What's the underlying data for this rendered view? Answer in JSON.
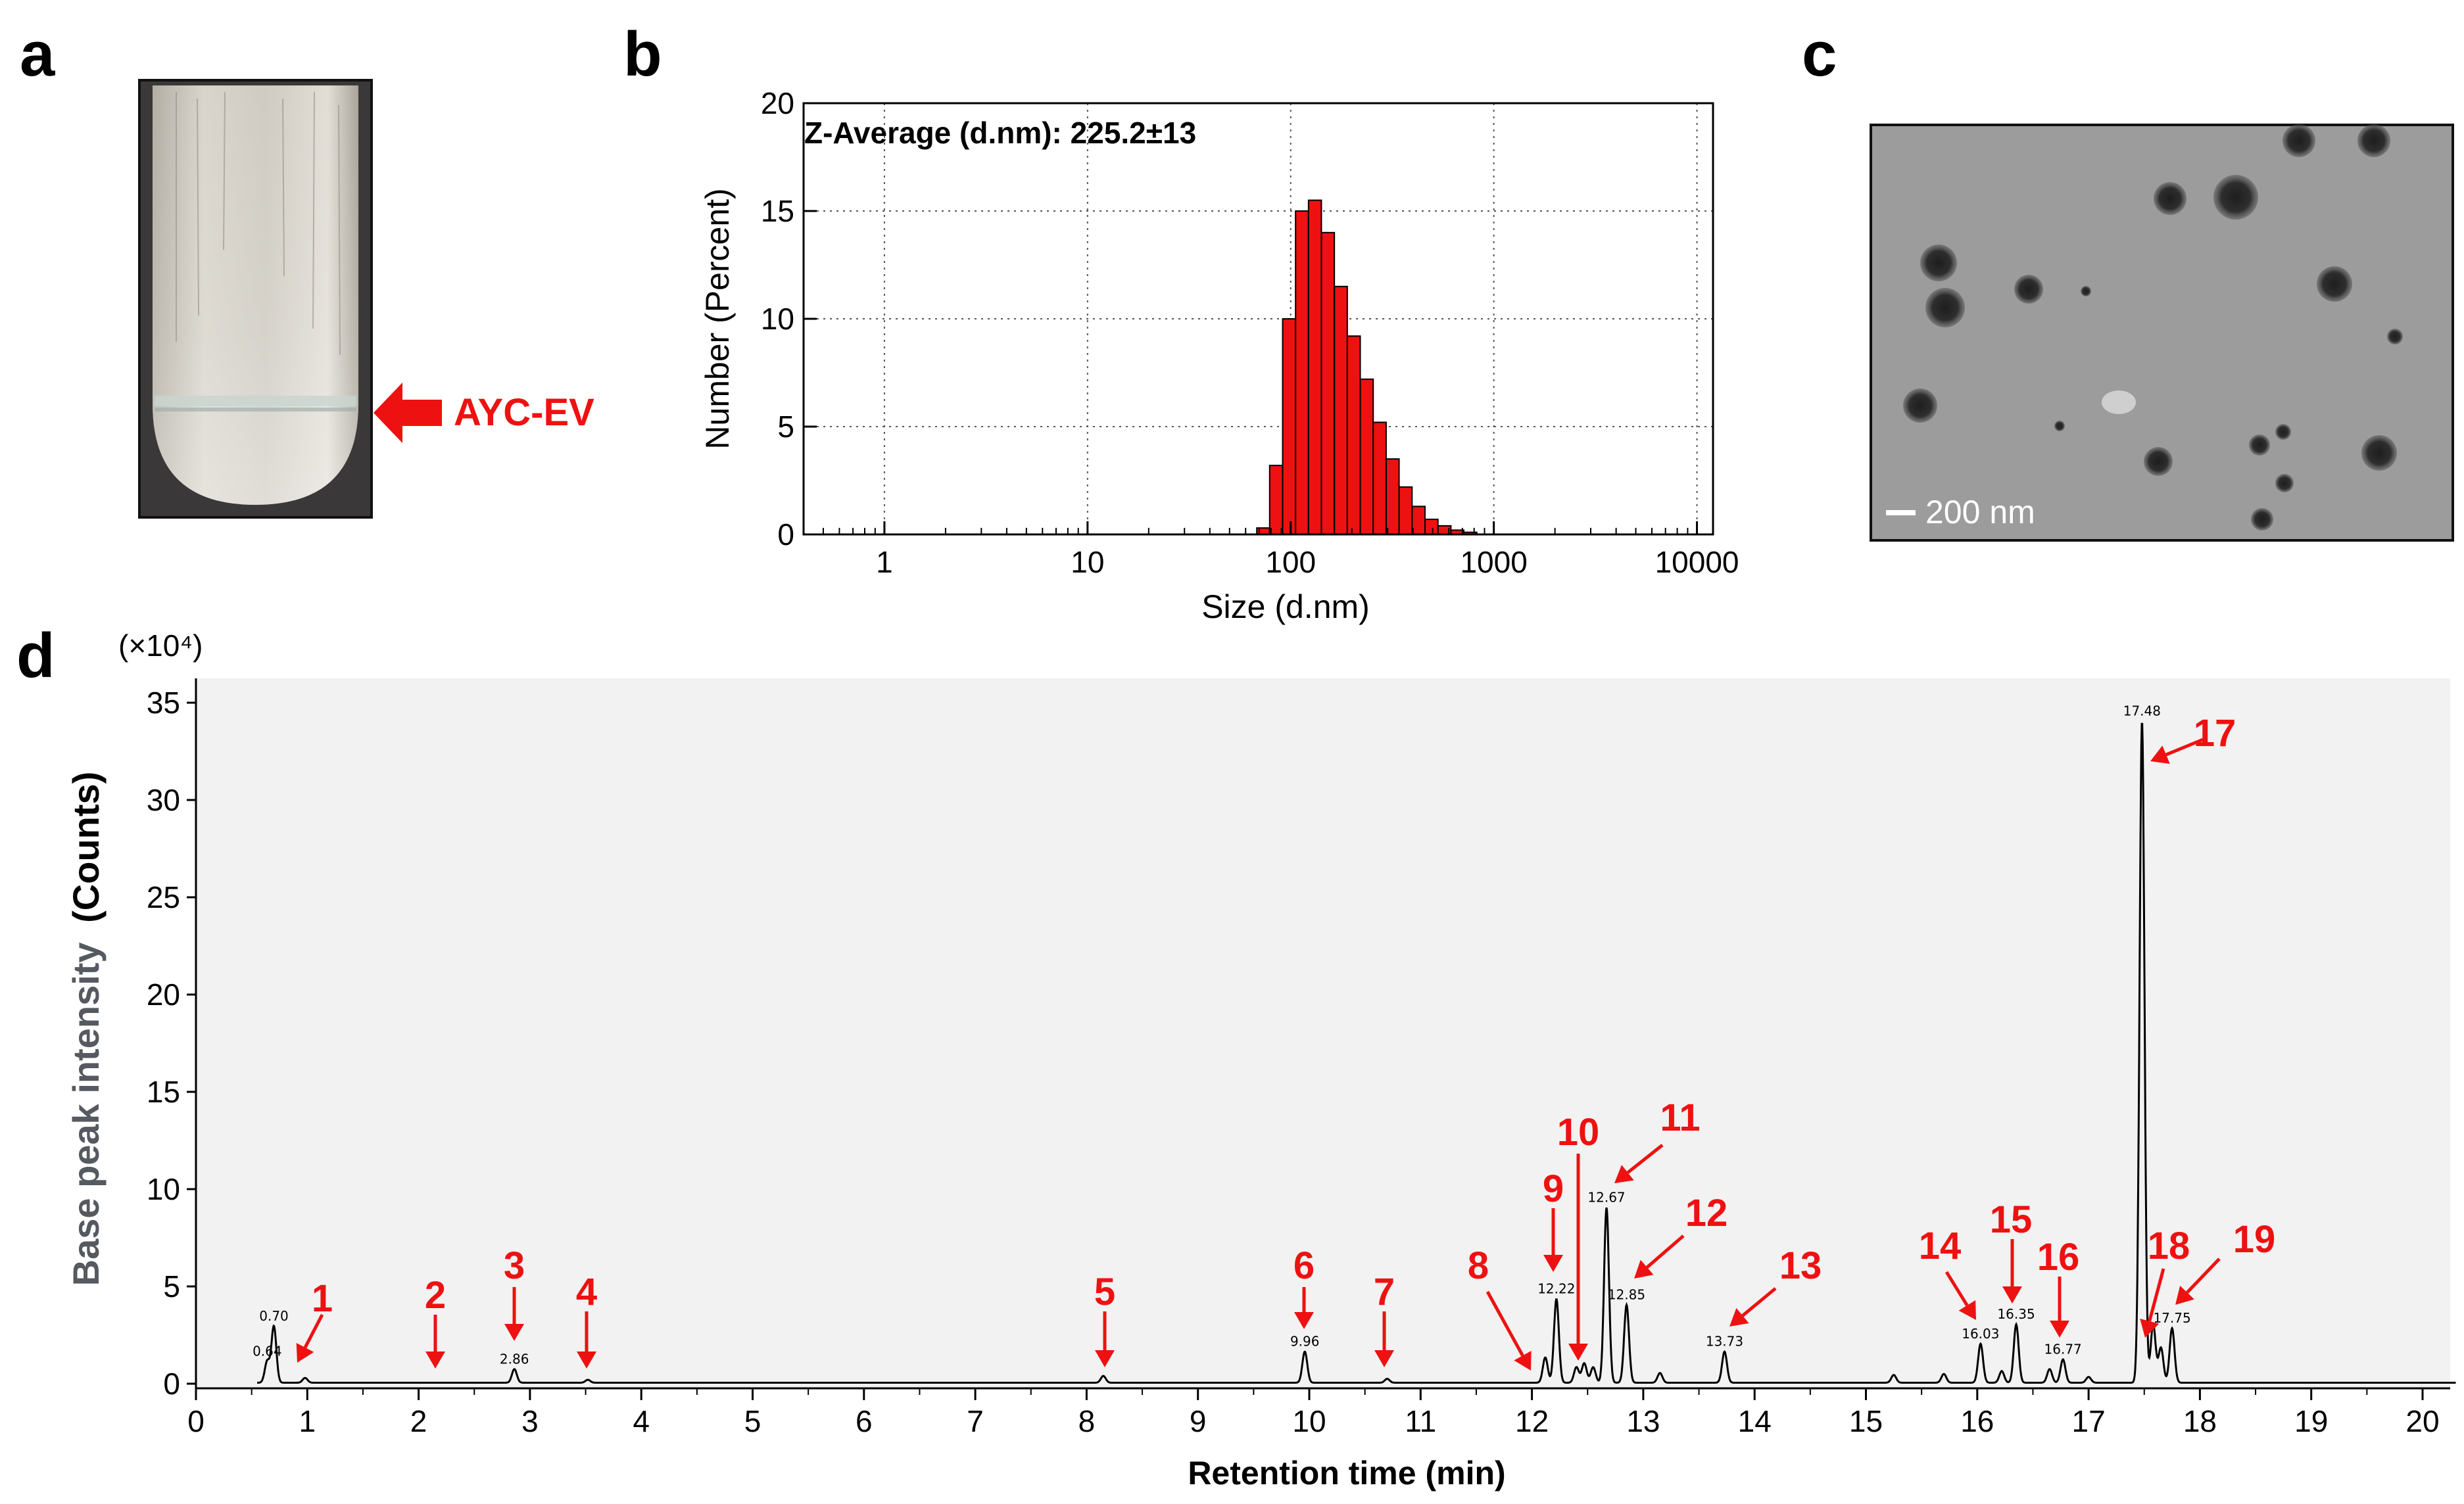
{
  "panels": {
    "a": "a",
    "b": "b",
    "c": "c",
    "d": "d"
  },
  "panel_a": {
    "arrow_label": "AYC-EV",
    "accent_color": "#ee1111"
  },
  "panel_c": {
    "scale_label": "200 nm"
  },
  "chart_data": [
    {
      "id": "b",
      "type": "bar",
      "title": "",
      "annotation": "Z-Average (d.nm): 225.2±13",
      "xlabel": "Size (d.nm)",
      "ylabel": "Number (Percent)",
      "xscale": "log",
      "xlim": [
        0.4,
        12000
      ],
      "ylim": [
        0,
        20
      ],
      "xticks": [
        "1",
        "10",
        "100",
        "1000",
        "10000"
      ],
      "yticks": [
        "0",
        "5",
        "10",
        "15",
        "20"
      ],
      "grid": true,
      "bar_color": "#ee1111",
      "bin_starts": [
        68.1,
        78.8,
        91.3,
        105.7,
        122.4,
        141.8,
        164.2,
        190.1,
        220.2,
        255.0,
        295.3,
        342.0,
        396.1,
        458.7,
        531.2,
        615.1,
        712.4
      ],
      "values": [
        0.3,
        3.2,
        10.0,
        15.0,
        15.5,
        14.0,
        11.5,
        9.2,
        7.2,
        5.2,
        3.5,
        2.2,
        1.3,
        0.7,
        0.4,
        0.2,
        0.1
      ]
    },
    {
      "id": "d",
      "type": "line",
      "title": "",
      "xlabel": "Retention time (min)",
      "ylabel_light": "Base peak intensity",
      "ylabel_bold": "(Counts)",
      "y_multiplier": "(×10⁴)",
      "xlim": [
        0,
        20.3
      ],
      "ylim": [
        -0.5,
        35.5
      ],
      "xticks": [
        "0",
        "1",
        "2",
        "3",
        "4",
        "5",
        "6",
        "7",
        "8",
        "9",
        "10",
        "11",
        "12",
        "13",
        "14",
        "15",
        "16",
        "17",
        "18",
        "19",
        "20"
      ],
      "yticks": [
        "0",
        "5",
        "10",
        "15",
        "20",
        "25",
        "30",
        "35"
      ],
      "peaks": [
        {
          "rt": 0.64,
          "height": 1.1,
          "label": "0.64"
        },
        {
          "rt": 0.7,
          "height": 2.9,
          "label": "0.70"
        },
        {
          "rt": 0.98,
          "height": 0.25,
          "label": ""
        },
        {
          "rt": 2.86,
          "height": 0.7,
          "label": "2.86"
        },
        {
          "rt": 3.52,
          "height": 0.15,
          "label": ""
        },
        {
          "rt": 8.15,
          "height": 0.35,
          "label": ""
        },
        {
          "rt": 9.96,
          "height": 1.6,
          "label": "9.96"
        },
        {
          "rt": 10.7,
          "height": 0.2,
          "label": ""
        },
        {
          "rt": 12.12,
          "height": 1.3,
          "label": ""
        },
        {
          "rt": 12.22,
          "height": 4.3,
          "label": "12.22"
        },
        {
          "rt": 12.4,
          "height": 0.8,
          "label": ""
        },
        {
          "rt": 12.47,
          "height": 1.0,
          "label": ""
        },
        {
          "rt": 12.55,
          "height": 0.8,
          "label": ""
        },
        {
          "rt": 12.67,
          "height": 9.0,
          "label": "12.67"
        },
        {
          "rt": 12.85,
          "height": 4.0,
          "label": "12.85"
        },
        {
          "rt": 13.15,
          "height": 0.5,
          "label": ""
        },
        {
          "rt": 13.73,
          "height": 1.6,
          "label": "13.73"
        },
        {
          "rt": 15.25,
          "height": 0.4,
          "label": ""
        },
        {
          "rt": 15.7,
          "height": 0.45,
          "label": ""
        },
        {
          "rt": 16.03,
          "height": 2.0,
          "label": "16.03"
        },
        {
          "rt": 16.22,
          "height": 0.6,
          "label": ""
        },
        {
          "rt": 16.35,
          "height": 3.0,
          "label": "16.35"
        },
        {
          "rt": 16.65,
          "height": 0.7,
          "label": ""
        },
        {
          "rt": 16.77,
          "height": 1.2,
          "label": "16.77"
        },
        {
          "rt": 17.0,
          "height": 0.3,
          "label": ""
        },
        {
          "rt": 17.48,
          "height": 34.0,
          "label": "17.48"
        },
        {
          "rt": 17.58,
          "height": 3.0,
          "label": ""
        },
        {
          "rt": 17.65,
          "height": 1.8,
          "label": ""
        },
        {
          "rt": 17.75,
          "height": 2.8,
          "label": "17.75"
        }
      ],
      "annotations": [
        {
          "n": "1",
          "rt": 0.98
        },
        {
          "n": "2",
          "rt": 2.18
        },
        {
          "n": "3",
          "rt": 2.86
        },
        {
          "n": "4",
          "rt": 3.52
        },
        {
          "n": "5",
          "rt": 8.15
        },
        {
          "n": "6",
          "rt": 9.96
        },
        {
          "n": "7",
          "rt": 10.7
        },
        {
          "n": "8",
          "rt": 12.05
        },
        {
          "n": "9",
          "rt": 12.22
        },
        {
          "n": "10",
          "rt": 12.47
        },
        {
          "n": "11",
          "rt": 12.67
        },
        {
          "n": "12",
          "rt": 12.85
        },
        {
          "n": "13",
          "rt": 13.73
        },
        {
          "n": "14",
          "rt": 16.03
        },
        {
          "n": "15",
          "rt": 16.35
        },
        {
          "n": "16",
          "rt": 16.77
        },
        {
          "n": "17",
          "rt": 17.48
        },
        {
          "n": "18",
          "rt": 17.65
        },
        {
          "n": "19",
          "rt": 17.75
        }
      ]
    }
  ]
}
